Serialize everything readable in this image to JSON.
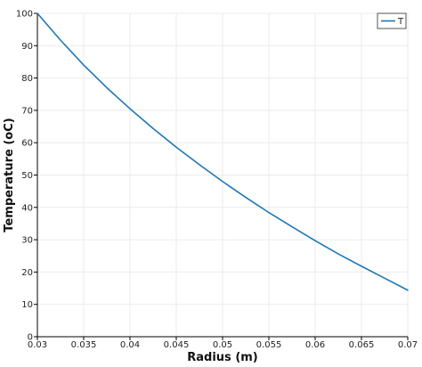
{
  "chart_data": {
    "type": "line",
    "title": "",
    "xlabel": "Radius (m)",
    "ylabel": "Temperature (oC)",
    "xlim": [
      0.03,
      0.07
    ],
    "ylim": [
      0,
      100
    ],
    "x_ticks": [
      "0.03",
      "0.035",
      "0.04",
      "0.045",
      "0.05",
      "0.055",
      "0.06",
      "0.065",
      "0.07"
    ],
    "y_ticks": [
      "0",
      "10",
      "20",
      "30",
      "40",
      "50",
      "60",
      "70",
      "80",
      "90",
      "100"
    ],
    "grid": true,
    "legend_position": "top-right",
    "series": [
      {
        "name": "T",
        "color": "#1f77b4",
        "x": [
          0.03,
          0.0325,
          0.035,
          0.0375,
          0.04,
          0.0425,
          0.045,
          0.0475,
          0.05,
          0.0525,
          0.055,
          0.0575,
          0.06,
          0.0625,
          0.065,
          0.0675,
          0.07
        ],
        "y": [
          100,
          91.7,
          84.0,
          77.0,
          70.5,
          64.4,
          58.6,
          53.2,
          48.0,
          43.1,
          38.4,
          34.0,
          29.7,
          25.6,
          21.8,
          18.1,
          14.4
        ]
      }
    ]
  }
}
